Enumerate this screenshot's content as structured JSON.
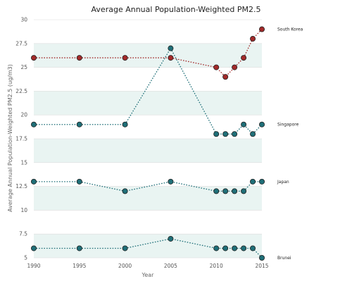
{
  "chart_data": {
    "type": "line",
    "title": "Average Annual Population-Weighted PM2.5",
    "xlabel": "Year",
    "ylabel": "Average Annual Population-Weighted PM2.5 (ug/m3)",
    "x": [
      1990,
      1995,
      2000,
      2005,
      2010,
      2011,
      2012,
      2013,
      2014,
      2015
    ],
    "xticks": [
      "1990",
      "1995",
      "2000",
      "2005",
      "2010",
      "2015"
    ],
    "yticks": [
      "5",
      "7.5",
      "10",
      "12.5",
      "15",
      "17.5",
      "20",
      "22.5",
      "25",
      "27.5",
      "30"
    ],
    "ylim": [
      5,
      30
    ],
    "xlim": [
      1990,
      2015
    ],
    "grid": true,
    "series": [
      {
        "name": "South Korea",
        "color": "#a32a2a",
        "values": [
          26,
          26,
          26,
          26,
          25,
          24,
          25,
          26,
          28,
          29
        ]
      },
      {
        "name": "Singapore",
        "color": "#1f6f78",
        "values": [
          19,
          19,
          19,
          27,
          18,
          18,
          18,
          19,
          18,
          19
        ]
      },
      {
        "name": "Japan",
        "color": "#1f6f78",
        "values": [
          13,
          13,
          12,
          13,
          12,
          12,
          12,
          12,
          13,
          13
        ]
      },
      {
        "name": "Brunei",
        "color": "#1f6f78",
        "values": [
          6,
          6,
          6,
          7,
          6,
          6,
          6,
          6,
          6,
          5
        ]
      }
    ],
    "band_color": "#e9f4f2"
  }
}
